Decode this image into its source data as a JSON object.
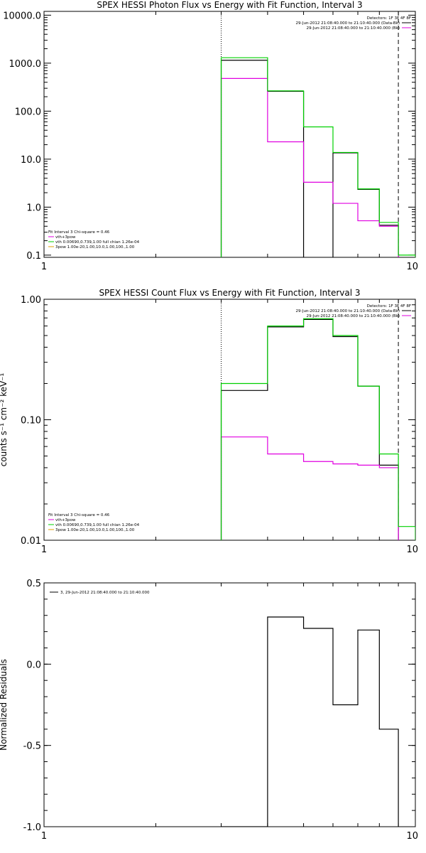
{
  "colors": {
    "black": "#000000",
    "magenta": "#e000e0",
    "green": "#00d000",
    "orange": "#e0a000"
  },
  "chart_data": [
    {
      "type": "line",
      "title": "SPEX HESSI Photon Flux vs Energy with Fit Function, Interval 3",
      "xlabel": "",
      "ylabel": "",
      "xscale": "log",
      "yscale": "log",
      "xlim": [
        1,
        10
      ],
      "ylim": [
        0.09,
        12000
      ],
      "xticks": [
        1,
        10
      ],
      "xtick_labels": [
        "1",
        "10"
      ],
      "yticks": [
        0.1,
        1,
        10,
        100,
        1000,
        10000
      ],
      "ytick_labels": [
        "0.1",
        "1.0",
        "10.0",
        "100.0",
        "1000.0",
        "10000.0"
      ],
      "vlines": [
        {
          "x": 3,
          "style": "dotted"
        },
        {
          "x": 9,
          "style": "dashed"
        }
      ],
      "edges": [
        3,
        4,
        5,
        6,
        7,
        8,
        9,
        10
      ],
      "series": [
        {
          "color": "#000000",
          "values": [
            1150,
            260,
            null,
            13.5,
            2.35,
            0.42,
            null
          ]
        },
        {
          "color": "#e000e0",
          "values": [
            480,
            23,
            3.3,
            1.2,
            0.52,
            0.4,
            null
          ]
        },
        {
          "color": "#00d000",
          "values": [
            1300,
            265,
            47,
            13.8,
            2.4,
            0.48,
            0.1
          ]
        }
      ],
      "legend_top_right": {
        "header": "Detectors: 1F 3F 4F 8F",
        "entries": [
          {
            "text": "29-Jun-2012 21:08:40.000 to 21:10:40.000 (Data-Bk)",
            "color": "#000000"
          },
          {
            "text": "29-Jun-2012 21:08:40.000 to 21:10:40.000 (Bk)",
            "color": "#e000e0"
          }
        ]
      },
      "legend_bottom_left": {
        "header": "Fit Interval 3   Chi-square = 0.46",
        "entries": [
          {
            "text": "vth+3pow",
            "color": "#e000e0"
          },
          {
            "text": "vth 0.00690,0.739,1.00   full chian 1.26e-04",
            "color": "#00d000"
          },
          {
            "text": "3pow 1.00e-20,1.00,10.0,1.00,100.,1.00",
            "color": "#e0a000"
          }
        ]
      }
    },
    {
      "type": "line",
      "title": "SPEX HESSI Count Flux vs Energy with Fit Function, Interval 3",
      "xlabel": "",
      "ylabel": "counts s⁻¹ cm⁻² keV⁻¹",
      "xscale": "log",
      "yscale": "log",
      "xlim": [
        1,
        10
      ],
      "ylim": [
        0.01,
        1.0
      ],
      "xticks": [
        1,
        10
      ],
      "xtick_labels": [
        "1",
        "10"
      ],
      "yticks": [
        0.01,
        0.1,
        1.0
      ],
      "ytick_labels": [
        "0.01",
        "0.10",
        "1.00"
      ],
      "vlines": [
        {
          "x": 3,
          "style": "dotted"
        },
        {
          "x": 9,
          "style": "dashed"
        }
      ],
      "edges": [
        3,
        4,
        5,
        6,
        7,
        8,
        9,
        10
      ],
      "series": [
        {
          "color": "#000000",
          "values": [
            0.175,
            0.59,
            0.68,
            0.49,
            0.19,
            0.042,
            null
          ]
        },
        {
          "color": "#e000e0",
          "values": [
            0.072,
            0.052,
            0.045,
            0.043,
            0.042,
            0.04,
            null
          ]
        },
        {
          "color": "#00d000",
          "values": [
            0.2,
            0.6,
            0.69,
            0.5,
            0.19,
            0.052,
            0.013
          ]
        }
      ],
      "legend_top_right": {
        "header": "Detectors: 1F 3F 4F 8F",
        "entries": [
          {
            "text": "29-Jun-2012 21:08:40.000 to 21:10:40.000 (Data-Bk)",
            "color": "#000000"
          },
          {
            "text": "29-Jun-2012 21:08:40.000 to 21:10:40.000 (Bk)",
            "color": "#e000e0"
          }
        ]
      },
      "legend_bottom_left": {
        "header": "Fit Interval 3   Chi-square = 0.46",
        "entries": [
          {
            "text": "vth+3pow",
            "color": "#e000e0"
          },
          {
            "text": "vth 0.00690,0.739,1.00   full chian 1.26e-04",
            "color": "#00d000"
          },
          {
            "text": "3pow 1.00e-20,1.00,10.0,1.00,100.,1.00",
            "color": "#e0a000"
          }
        ]
      }
    },
    {
      "type": "line",
      "title": "",
      "xlabel": "",
      "ylabel": "Normalized Residuals",
      "xscale": "log",
      "yscale": "linear",
      "xlim": [
        1,
        10
      ],
      "ylim": [
        -1.0,
        0.5
      ],
      "xticks": [
        1,
        10
      ],
      "xtick_labels": [
        "1",
        "10"
      ],
      "yticks": [
        -1.0,
        -0.5,
        0.0,
        0.5
      ],
      "ytick_labels": [
        "-1.0",
        "-0.5",
        "0.0",
        "0.5"
      ],
      "vlines": [],
      "edges": [
        3,
        4,
        5,
        6,
        7,
        8,
        9
      ],
      "series": [
        {
          "color": "#000000",
          "values": [
            -1.0,
            0.29,
            0.22,
            -0.25,
            0.21,
            -0.4
          ]
        }
      ],
      "legend_top_left": {
        "entries": [
          {
            "text": "3, 29-Jun-2012 21:08:40.000 to 21:10:40.000",
            "color": "#000000"
          }
        ]
      }
    }
  ]
}
